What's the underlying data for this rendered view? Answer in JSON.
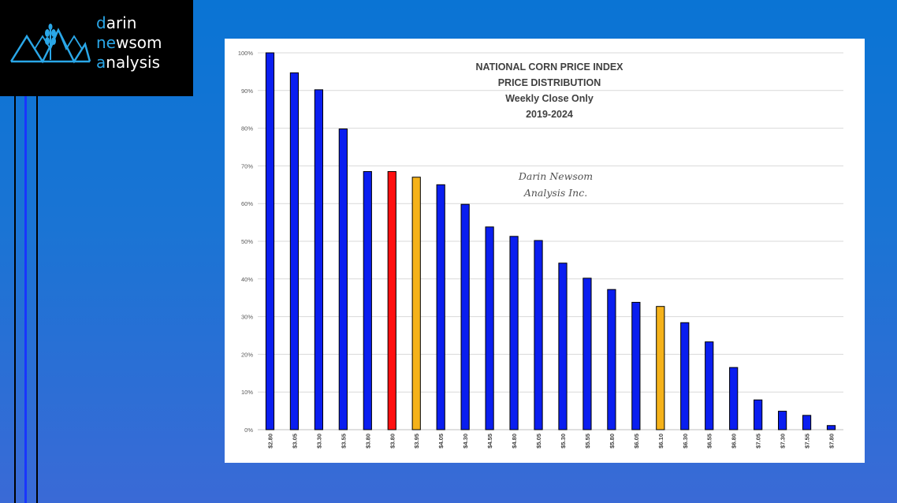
{
  "logo": {
    "line1_accent": "d",
    "line1_rest": "arin",
    "line2_accent": "ne",
    "line2_mid": "w",
    "line2_rest": "som",
    "line3_accent": "a",
    "line3_rest": "nalysis"
  },
  "chart_data": {
    "type": "bar",
    "title_lines": [
      "NATIONAL CORN PRICE INDEX",
      "PRICE DISTRIBUTION",
      "Weekly Close Only",
      "2019-2024"
    ],
    "watermark_lines": [
      "Darin Newsom",
      "Analysis Inc."
    ],
    "categories": [
      "$2.80",
      "$3.05",
      "$3.30",
      "$3.55",
      "$3.80",
      "$3.80",
      "$3.95",
      "$4.05",
      "$4.30",
      "$4.55",
      "$4.80",
      "$5.05",
      "$5.30",
      "$5.55",
      "$5.80",
      "$6.05",
      "$6.10",
      "$6.30",
      "$6.55",
      "$6.80",
      "$7.05",
      "$7.30",
      "$7.55",
      "$7.80"
    ],
    "values": [
      100,
      94.7,
      90.2,
      79.8,
      68.5,
      68.5,
      67.0,
      65.0,
      59.8,
      53.8,
      51.3,
      50.2,
      44.2,
      40.2,
      37.2,
      33.8,
      32.7,
      28.4,
      23.3,
      16.5,
      7.9,
      4.9,
      3.8,
      1.1
    ],
    "bar_colors": [
      "#0a1ef0",
      "#0a1ef0",
      "#0a1ef0",
      "#0a1ef0",
      "#0a1ef0",
      "#ff1010",
      "#f5b21a",
      "#0a1ef0",
      "#0a1ef0",
      "#0a1ef0",
      "#0a1ef0",
      "#0a1ef0",
      "#0a1ef0",
      "#0a1ef0",
      "#0a1ef0",
      "#0a1ef0",
      "#f5b21a",
      "#0a1ef0",
      "#0a1ef0",
      "#0a1ef0",
      "#0a1ef0",
      "#0a1ef0",
      "#0a1ef0",
      "#0a1ef0"
    ],
    "yticks": [
      "0%",
      "10%",
      "20%",
      "30%",
      "40%",
      "50%",
      "60%",
      "70%",
      "80%",
      "90%",
      "100%"
    ],
    "ylim": [
      0,
      100
    ],
    "grid": true,
    "legend": "none"
  }
}
